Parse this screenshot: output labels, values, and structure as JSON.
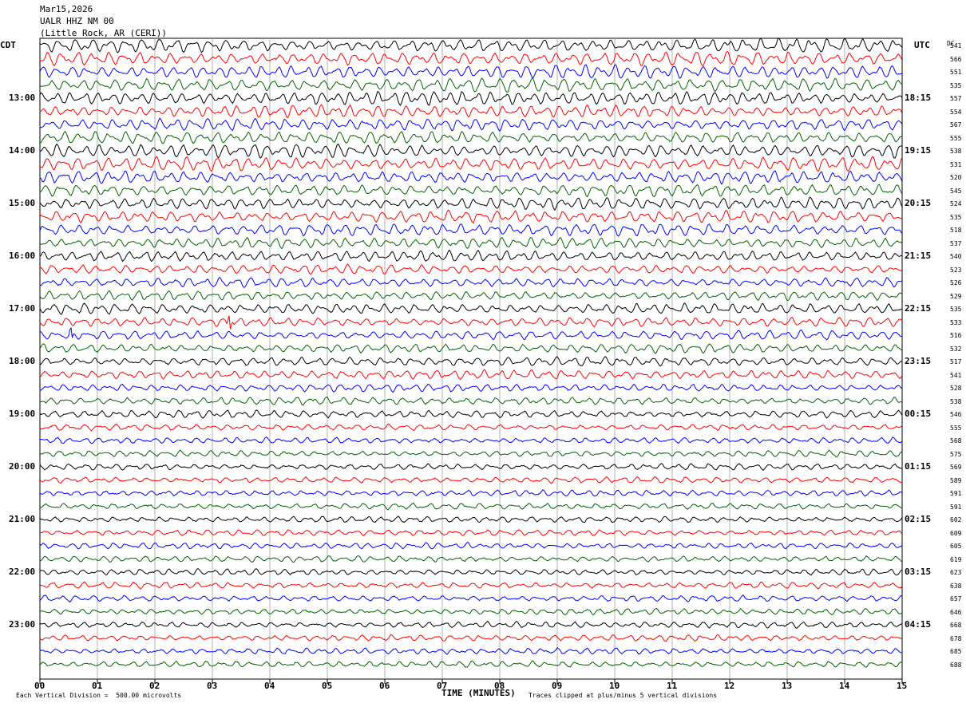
{
  "header": {
    "date": "Mar15,2026",
    "station": "UALR HHZ NM 00",
    "location": "(Little Rock, AR (CERI))"
  },
  "axis": {
    "left_tz": "CDT",
    "right_tz": "UTC",
    "dc_label": "DC",
    "xlabel": "TIME (MINUTES)"
  },
  "footer": {
    "scale_note": "Each Vertical Division =  500.00 microvolts",
    "clip_note": "Traces clipped at plus/minus 5 vertical divisions"
  },
  "chart_data": {
    "type": "line",
    "title": "UALR HHZ NM 00",
    "xlabel": "TIME (MINUTES)",
    "xlim": [
      0,
      15
    ],
    "x_ticks": [
      "00",
      "01",
      "02",
      "03",
      "04",
      "05",
      "06",
      "07",
      "08",
      "09",
      "10",
      "11",
      "12",
      "13",
      "14",
      "15"
    ],
    "grid": "vertical",
    "traces_per_hour": 4,
    "trace_colors": [
      "#000000",
      "#ff0000",
      "#0000ff",
      "#006400"
    ],
    "left_hour_labels": [
      "13:00",
      "14:00",
      "15:00",
      "16:00",
      "17:00",
      "18:00",
      "19:00",
      "20:00",
      "21:00",
      "22:00",
      "23:00"
    ],
    "right_hour_labels": [
      "18:15",
      "19:15",
      "20:15",
      "21:15",
      "22:15",
      "23:15",
      "00:15",
      "01:15",
      "02:15",
      "03:15",
      "04:15"
    ],
    "dc_offsets": [
      "541",
      "566",
      "551",
      "535",
      "557",
      "554",
      "567",
      "555",
      "538",
      "531",
      "520",
      "545",
      "524",
      "535",
      "518",
      "537",
      "540",
      "523",
      "526",
      "529",
      "535",
      "533",
      "516",
      "532",
      "517",
      "541",
      "528",
      "538",
      "546",
      "555",
      "568",
      "575",
      "569",
      "589",
      "591",
      "591",
      "602",
      "609",
      "605",
      "619",
      "623",
      "638",
      "657",
      "646",
      "668",
      "678",
      "685",
      "688"
    ],
    "amplitude_profile": [
      9,
      9,
      9,
      9,
      9,
      8,
      8,
      8,
      9,
      9,
      8,
      8,
      8,
      8,
      8,
      7,
      7,
      6,
      6,
      6,
      7,
      6,
      6,
      6,
      6,
      6,
      5,
      5,
      5,
      4,
      4,
      4,
      4,
      4,
      4,
      4,
      4,
      4,
      4,
      4,
      4,
      4,
      4,
      4,
      4,
      4,
      4,
      4
    ],
    "events": [
      {
        "trace": 21,
        "minute": 3.3,
        "amplitude": 15
      },
      {
        "trace": 22,
        "minute": 0.55,
        "amplitude": 10
      }
    ]
  }
}
